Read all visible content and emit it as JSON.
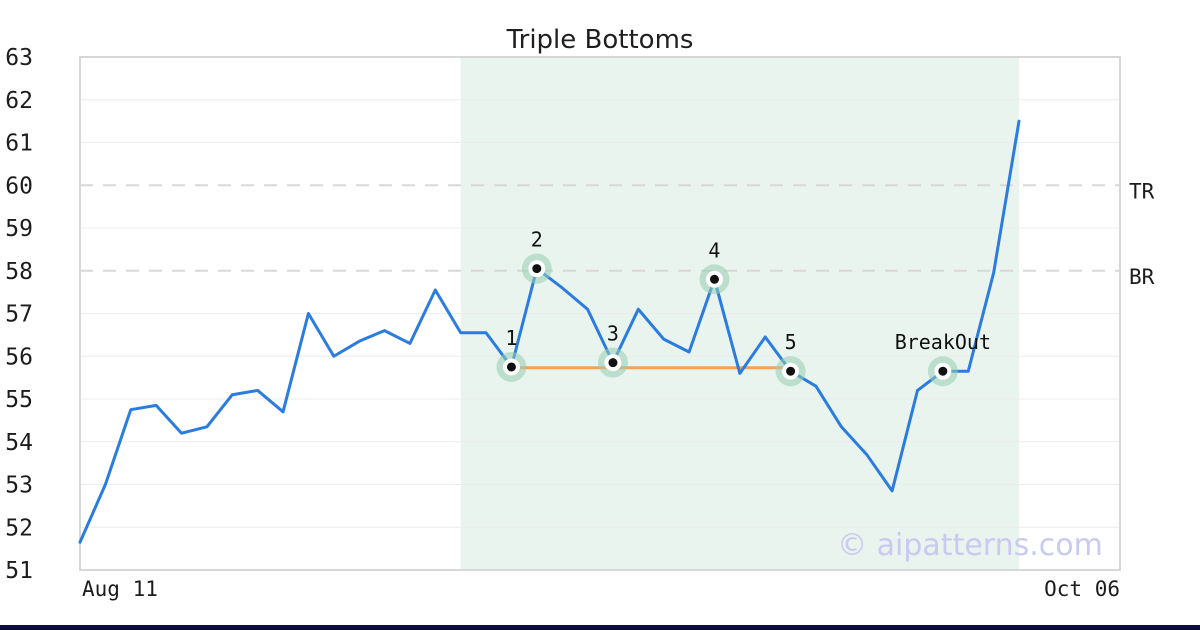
{
  "title": "Triple Bottoms",
  "watermark": "© aipatterns.com",
  "axes": {
    "x_tick_left": "Aug 11",
    "x_tick_right": "Oct 06",
    "y_ticks": [
      "63",
      "62",
      "61",
      "60",
      "59",
      "58",
      "57",
      "56",
      "55",
      "54",
      "53",
      "52",
      "51"
    ]
  },
  "colors": {
    "background": "#ffffff",
    "line": "#2b7ce0",
    "support_line": "#f5a259",
    "pattern_region": "#eaf4ef",
    "marker_halo": "rgba(150, 206, 176, 0.55)",
    "marker_ring": "#ffffff",
    "marker_dot": "#111111",
    "grid": "#ececec",
    "grid_dashed": "#d8d8d8",
    "border": "#d7d7d7",
    "footer_bar": "#0d0d3d",
    "watermark_color": "#c9c9f1",
    "text": "#1c1c1c"
  },
  "chart_data": {
    "type": "line",
    "title": "Triple Bottoms",
    "x_axis_labels": [
      "Aug 11",
      "Oct 06"
    ],
    "ylabel": "",
    "ylim": [
      51,
      63
    ],
    "grid": true,
    "values": [
      51.65,
      53.0,
      54.75,
      54.85,
      54.2,
      54.35,
      55.1,
      55.2,
      54.7,
      57.0,
      56.0,
      56.35,
      56.6,
      56.3,
      57.55,
      56.55,
      56.55,
      55.75,
      58.05,
      57.6,
      57.1,
      55.85,
      57.1,
      56.4,
      56.1,
      57.8,
      55.6,
      56.45,
      55.65,
      55.3,
      54.35,
      53.7,
      52.85,
      55.2,
      55.65,
      55.65,
      57.95,
      61.5
    ],
    "dashed_levels": [
      {
        "label": "TR",
        "value": 60
      },
      {
        "label": "BR",
        "value": 58
      }
    ],
    "support_level": 55.73,
    "support_span_indices": [
      17,
      28
    ],
    "pattern_region_indices": [
      15,
      37
    ],
    "annotations": [
      {
        "label": "1",
        "index": 17,
        "value": 55.75
      },
      {
        "label": "2",
        "index": 18,
        "value": 58.05
      },
      {
        "label": "3",
        "index": 21,
        "value": 55.85
      },
      {
        "label": "4",
        "index": 25,
        "value": 57.8
      },
      {
        "label": "5",
        "index": 28,
        "value": 55.65
      },
      {
        "label": "BreakOut",
        "index": 34,
        "value": 55.65
      }
    ]
  }
}
